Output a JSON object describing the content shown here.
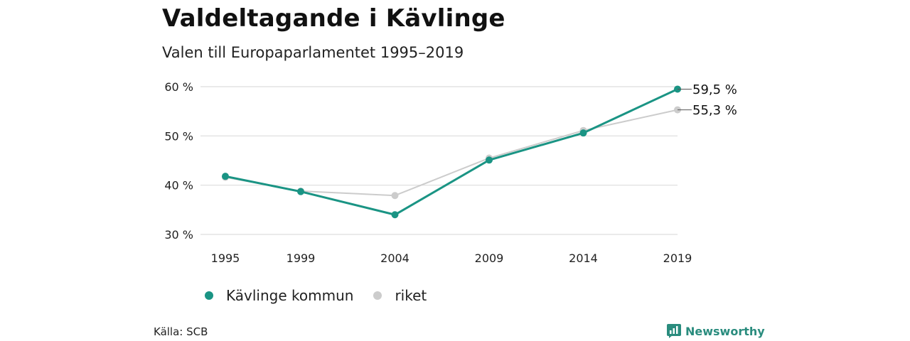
{
  "header": {
    "title": "Valdeltagande i Kävlinge",
    "subtitle": "Valen till Europaparlamentet 1995–2019"
  },
  "footer": {
    "source": "Källa: SCB",
    "brand": "Newsworthy"
  },
  "colors": {
    "kavlinge": "#1a9484",
    "riket": "#cccccc",
    "grid": "#dddddd",
    "brand": "#2a8c7e"
  },
  "chart_data": {
    "type": "line",
    "x": [
      "1995",
      "1999",
      "2004",
      "2009",
      "2014",
      "2019"
    ],
    "xnum": [
      1995,
      1999,
      2004,
      2009,
      2014,
      2019
    ],
    "ylim": [
      30,
      60
    ],
    "yticks": [
      30,
      40,
      50,
      60
    ],
    "ytick_labels": [
      "30 %",
      "40 %",
      "50 %",
      "60 %"
    ],
    "series": [
      {
        "name": "Kävlinge kommun",
        "values": [
          41.8,
          38.7,
          34.0,
          45.1,
          50.6,
          59.5
        ],
        "end_label": "59,5 %"
      },
      {
        "name": "riket",
        "values": [
          41.6,
          38.8,
          37.9,
          45.5,
          51.1,
          55.3
        ],
        "end_label": "55,3 %"
      }
    ],
    "legend_position": "bottom-left",
    "grid": true
  }
}
